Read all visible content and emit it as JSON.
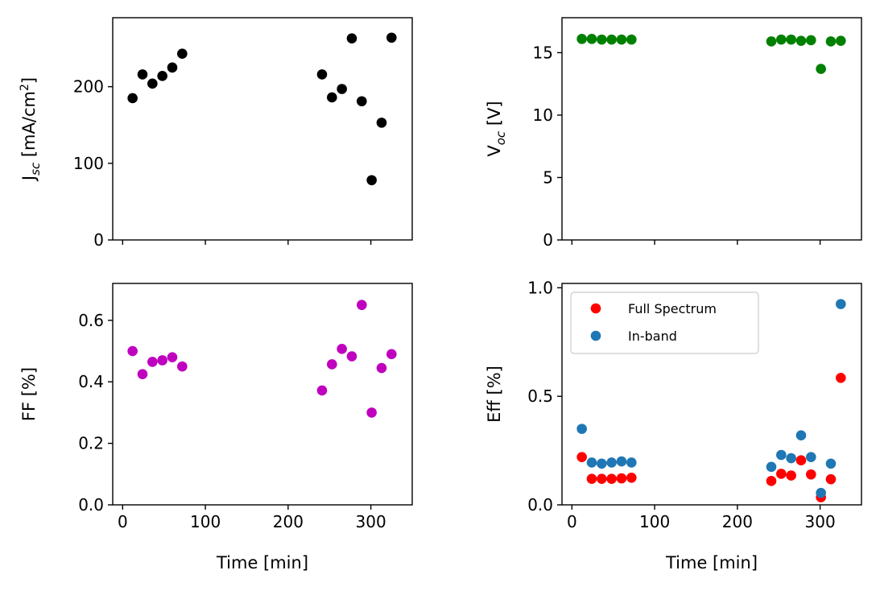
{
  "chart_data": [
    {
      "type": "scatter",
      "xlabel": "",
      "ylabel_main": "J",
      "ylabel_sub": "sc",
      "ylabel_tail": " [mA/cm",
      "ylabel_sup": "2",
      "ylabel_end": "]",
      "xlim": [
        -12,
        350
      ],
      "ylim": [
        0,
        290
      ],
      "xticks": [
        0,
        100,
        200,
        300
      ],
      "yticks": [
        0,
        100,
        200
      ],
      "yticklabels": [
        "0",
        "100",
        "200"
      ],
      "show_xticklabels": false,
      "series": [
        {
          "color": "#000000",
          "x": [
            12,
            24,
            36,
            48,
            60,
            72,
            241,
            253,
            265,
            277,
            289,
            301,
            313,
            325
          ],
          "y": [
            185,
            216,
            204,
            214,
            225,
            243,
            216,
            186,
            197,
            263,
            181,
            78,
            153,
            264
          ]
        }
      ]
    },
    {
      "type": "scatter",
      "xlabel": "",
      "ylabel_main": "V",
      "ylabel_sub": "oc",
      "ylabel_tail": " [V]",
      "xlim": [
        -12,
        350
      ],
      "ylim": [
        0,
        17.8
      ],
      "xticks": [
        0,
        100,
        200,
        300
      ],
      "yticks": [
        0,
        5,
        10,
        15
      ],
      "yticklabels": [
        "0",
        "5",
        "10",
        "15"
      ],
      "show_xticklabels": false,
      "series": [
        {
          "color": "#008000",
          "x": [
            12,
            24,
            36,
            48,
            60,
            72,
            241,
            253,
            265,
            277,
            289,
            301,
            313,
            325
          ],
          "y": [
            16.1,
            16.1,
            16.05,
            16.05,
            16.05,
            16.05,
            15.9,
            16.05,
            16.05,
            15.95,
            16.0,
            13.7,
            15.9,
            15.95
          ]
        }
      ]
    },
    {
      "type": "scatter",
      "xlabel": "Time [min]",
      "ylabel_main": "FF [%]",
      "xlim": [
        -12,
        350
      ],
      "ylim": [
        0,
        0.72
      ],
      "xticks": [
        0,
        100,
        200,
        300
      ],
      "xticklabels": [
        "0",
        "100",
        "200",
        "300"
      ],
      "yticks": [
        0,
        0.2,
        0.4,
        0.6
      ],
      "yticklabels": [
        "0.0",
        "0.2",
        "0.4",
        "0.6"
      ],
      "show_xticklabels": true,
      "series": [
        {
          "color": "#bf00bf",
          "x": [
            12,
            24,
            36,
            48,
            60,
            72,
            241,
            253,
            265,
            277,
            289,
            301,
            313,
            325
          ],
          "y": [
            0.5,
            0.425,
            0.465,
            0.47,
            0.48,
            0.45,
            0.372,
            0.457,
            0.507,
            0.483,
            0.65,
            0.3,
            0.445,
            0.49
          ]
        }
      ]
    },
    {
      "type": "scatter",
      "xlabel": "Time [min]",
      "ylabel_main": "Eff [%]",
      "xlim": [
        -12,
        350
      ],
      "ylim": [
        0,
        1.02
      ],
      "xticks": [
        0,
        100,
        200,
        300
      ],
      "xticklabels": [
        "0",
        "100",
        "200",
        "300"
      ],
      "yticks": [
        0,
        0.5,
        1.0
      ],
      "yticklabels": [
        "0.0",
        "0.5",
        "1.0"
      ],
      "show_xticklabels": true,
      "legend": "top-left",
      "series": [
        {
          "name": "Full Spectrum",
          "color": "#ff0000",
          "x": [
            12,
            24,
            36,
            48,
            60,
            72,
            241,
            253,
            265,
            277,
            289,
            301,
            313,
            325
          ],
          "y": [
            0.22,
            0.12,
            0.12,
            0.12,
            0.122,
            0.125,
            0.11,
            0.143,
            0.135,
            0.205,
            0.14,
            0.035,
            0.118,
            0.585
          ]
        },
        {
          "name": "In-band",
          "color": "#1f77b4",
          "x": [
            12,
            24,
            36,
            48,
            60,
            72,
            241,
            253,
            265,
            277,
            289,
            301,
            313,
            325
          ],
          "y": [
            0.35,
            0.195,
            0.19,
            0.195,
            0.2,
            0.195,
            0.175,
            0.23,
            0.215,
            0.32,
            0.22,
            0.055,
            0.19,
            0.925
          ]
        }
      ]
    }
  ]
}
